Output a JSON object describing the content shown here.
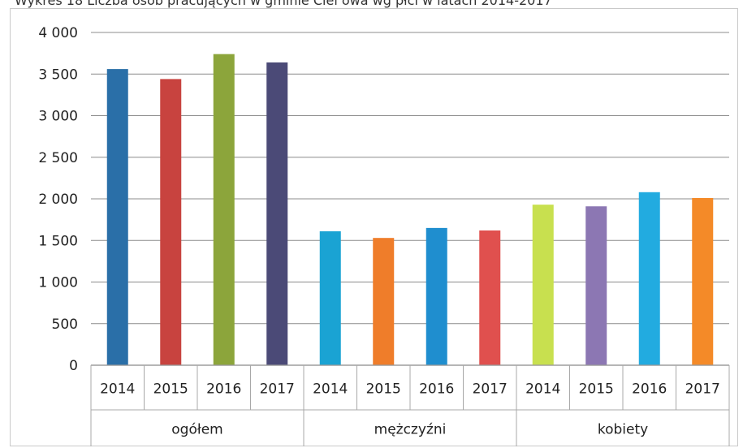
{
  "page_title": "Wykres 18 Liczba osób pracujących w gminie Ciel owa wg płci w latach 2014-2017",
  "chart_data": {
    "type": "bar",
    "title": "Wykres 18 Liczba osób pracujących w gminie Ciel owa wg płci w latach 2014-2017",
    "xlabel": "",
    "ylabel": "",
    "ylim": [
      0,
      4000
    ],
    "yticks": [
      "0",
      "500",
      "1 000",
      "1 500",
      "2 000",
      "2 500",
      "3 000",
      "3 500",
      "4 000"
    ],
    "ytick_values": [
      0,
      500,
      1000,
      1500,
      2000,
      2500,
      3000,
      3500,
      4000
    ],
    "grid": true,
    "legend": "none",
    "groups": [
      {
        "name": "ogółem",
        "categories": [
          "2014",
          "2015",
          "2016",
          "2017"
        ],
        "values": [
          3560,
          3440,
          3740,
          3640
        ],
        "colors": [
          "#2a6fa8",
          "#c8433f",
          "#8ca53b",
          "#4b4a77"
        ]
      },
      {
        "name": "mężczyźni",
        "categories": [
          "2014",
          "2015",
          "2016",
          "2017"
        ],
        "values": [
          1610,
          1530,
          1650,
          1620
        ],
        "colors": [
          "#1aa3d3",
          "#ef7d2a",
          "#1f8ecf",
          "#e0504e"
        ]
      },
      {
        "name": "kobiety",
        "categories": [
          "2014",
          "2015",
          "2016",
          "2017"
        ],
        "values": [
          1930,
          1910,
          2080,
          2010
        ],
        "colors": [
          "#c8e04f",
          "#8c77b3",
          "#22abe0",
          "#f48a28"
        ]
      }
    ]
  }
}
